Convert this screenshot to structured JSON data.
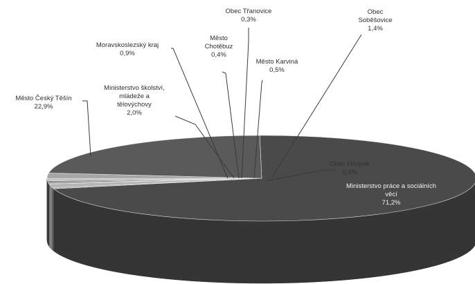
{
  "chart_data": {
    "type": "pie",
    "title": "",
    "slices": [
      {
        "label_lines": [
          "Ministerstvo práce a sociálních",
          "věcí"
        ],
        "value_text": "71,2%",
        "value": 71.2,
        "color": "#4a4a4a"
      },
      {
        "label_lines": [
          "Obec Hnojník"
        ],
        "value_text": "0,4%",
        "value": 0.4,
        "color": "#9a9a9a"
      },
      {
        "label_lines": [
          "Obec",
          "Soběšovice"
        ],
        "value_text": "1,4%",
        "value": 1.4,
        "color": "#b4b4b4"
      },
      {
        "label_lines": [
          "Obec Třanovice"
        ],
        "value_text": "0,3%",
        "value": 0.3,
        "color": "#8c8c8c"
      },
      {
        "label_lines": [
          "Město Karviná"
        ],
        "value_text": "0,5%",
        "value": 0.5,
        "color": "#7a7a7a"
      },
      {
        "label_lines": [
          "Město",
          "Chotěbuz"
        ],
        "value_text": "0,4%",
        "value": 0.4,
        "color": "#6a6a6a"
      },
      {
        "label_lines": [
          "Moravskoslezský kraj"
        ],
        "value_text": "0,9%",
        "value": 0.9,
        "color": "#c2c2c2"
      },
      {
        "label_lines": [
          "Ministerstvo školství,",
          "mládeže a",
          "tělovýchovy"
        ],
        "value_text": "2,0%",
        "value": 2.0,
        "color": "#a6a6a6"
      },
      {
        "label_lines": [
          "Město Český Těšín"
        ],
        "value_text": "22,9%",
        "value": 22.9,
        "color": "#5a5a5a"
      }
    ],
    "legend": "none",
    "style": "3d-pie"
  }
}
